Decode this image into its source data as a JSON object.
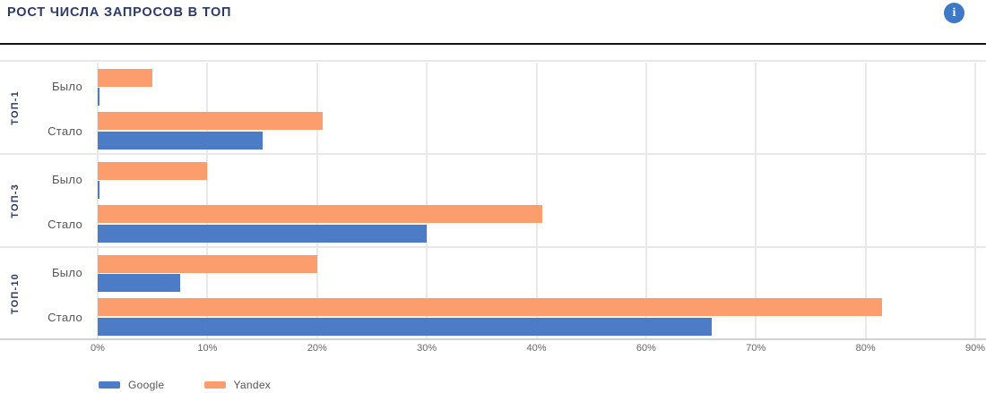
{
  "header": {
    "title": "РОСТ ЧИСЛА ЗАПРОСОВ В ТОП",
    "info_icon_glyph": "i"
  },
  "colors": {
    "title_navy": "#2b3a66",
    "google_blue": "#4d7cc7",
    "yandex_orange": "#fb9d6d",
    "info_icon_blue": "#3d79c6"
  },
  "legend": [
    {
      "name": "Google",
      "color": "#4d7cc7"
    },
    {
      "name": "Yandex",
      "color": "#fb9d6d"
    }
  ],
  "chart_data": {
    "type": "bar",
    "orientation": "horizontal",
    "title": "РОСТ ЧИСЛА ЗАПРОСОВ В ТОП",
    "x_tick_labels": [
      "0%",
      "10%",
      "20%",
      "30%",
      "40%",
      "60%",
      "70%",
      "80%",
      "90%"
    ],
    "x_unit": "%",
    "grid": true,
    "legend_position": "bottom-left",
    "series": [
      {
        "name": "Google",
        "color": "#4d7cc7"
      },
      {
        "name": "Yandex",
        "color": "#fb9d6d"
      }
    ],
    "groups": [
      {
        "label": "ТОП-1",
        "rows": [
          {
            "label": "Было",
            "yandex": 5,
            "google": 0.2
          },
          {
            "label": "Стало",
            "yandex": 20.5,
            "google": 15
          }
        ]
      },
      {
        "label": "ТОП-3",
        "rows": [
          {
            "label": "Было",
            "yandex": 10,
            "google": 0.2
          },
          {
            "label": "Стало",
            "yandex": 41,
            "google": 30
          }
        ]
      },
      {
        "label": "ТОП-10",
        "rows": [
          {
            "label": "Было",
            "yandex": 20,
            "google": 7.5
          },
          {
            "label": "Стало",
            "yandex": 81.5,
            "google": 66
          }
        ]
      }
    ]
  }
}
